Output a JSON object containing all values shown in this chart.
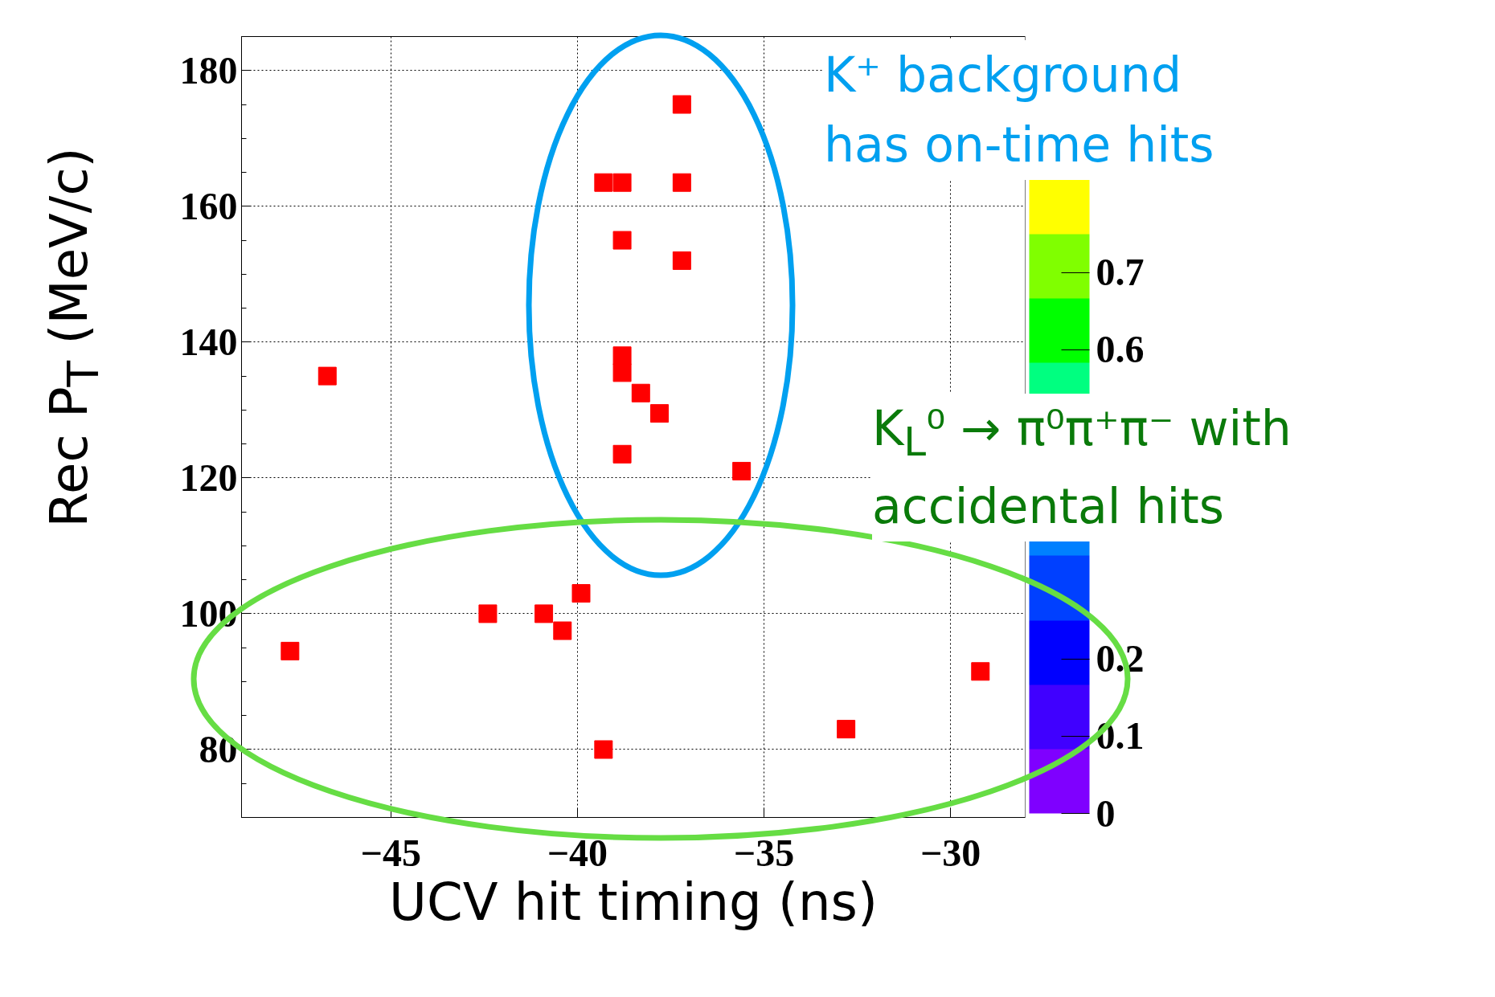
{
  "chart_data": {
    "type": "scatter",
    "xlabel": "UCV hit timing (ns)",
    "ylabel": "Rec P$_{T}$ (MeV/c)",
    "x": [
      -37.2,
      -39.3,
      -38.8,
      -37.2,
      -38.8,
      -37.2,
      -38.8,
      -38.8,
      -38.3,
      -37.8,
      -38.8,
      -35.6,
      -46.7,
      -39.9,
      -42.4,
      -40.9,
      -40.4,
      -47.7,
      -29.2,
      -32.8,
      -39.3
    ],
    "series": [
      {
        "color": "#ff0000",
        "values": [
          175,
          163.5,
          163.5,
          163.5,
          155,
          152,
          138,
          135.5,
          132.5,
          129.5,
          123.5,
          121,
          135,
          103,
          100,
          100,
          97.5,
          94.5,
          91.5,
          83,
          80
        ]
      }
    ],
    "marker": "square",
    "xlim": [
      -49,
      -28
    ],
    "ylim": [
      70,
      185
    ],
    "xticks": [
      -45,
      -40,
      -35,
      -30
    ],
    "yticks": [
      80,
      100,
      120,
      140,
      160,
      180
    ],
    "grid": true,
    "clim": [
      0,
      1
    ],
    "cticks": [
      0,
      0.1,
      0.2,
      0.6,
      0.7
    ],
    "annotations": [
      "K⁺ background\nhas on-time hits",
      "K$_{L}$⁰ → π⁰π⁺π⁻ with\naccidental hits"
    ]
  }
}
